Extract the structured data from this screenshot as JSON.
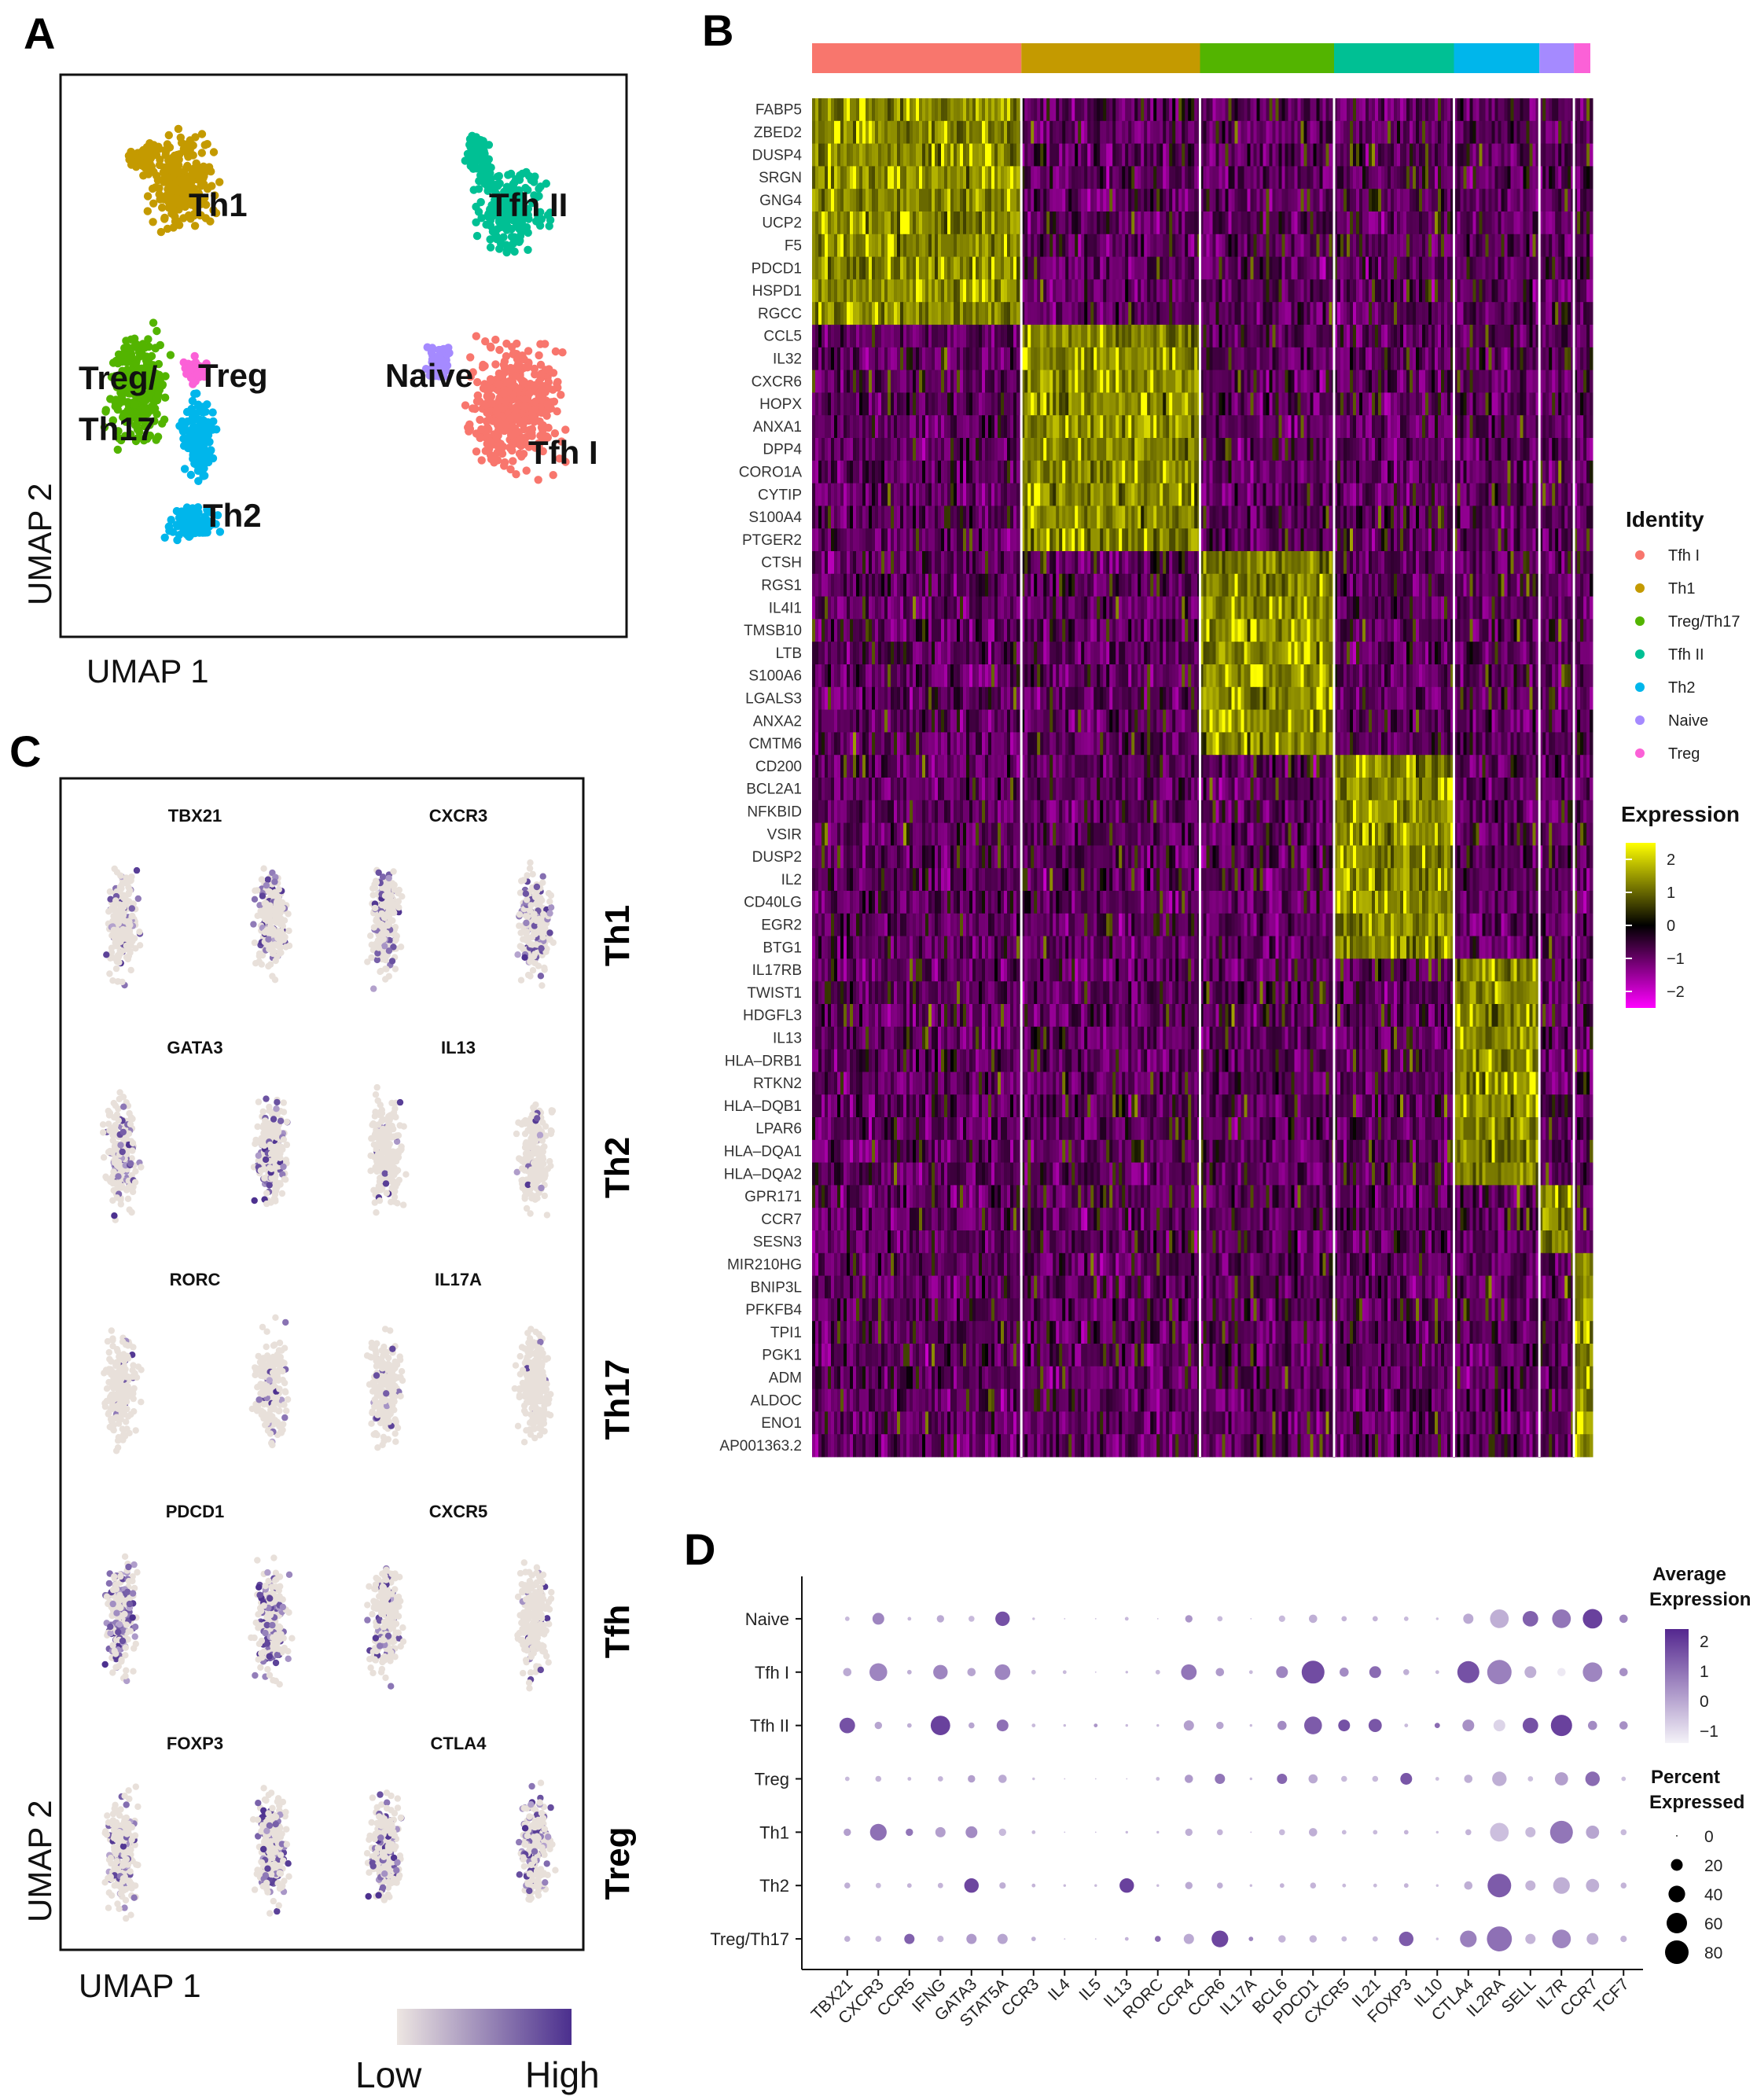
{
  "panels": {
    "A": "A",
    "B": "B",
    "C": "C",
    "D": "D"
  },
  "chart_data": [
    {
      "panel": "A",
      "type": "scatter",
      "xlabel": "UMAP 1",
      "ylabel": "UMAP 2",
      "cluster_labels": [
        {
          "text": "Th1"
        },
        {
          "text": "Tfh II"
        },
        {
          "text": "Treg/"
        },
        {
          "text": "Th17"
        },
        {
          "text": "Treg"
        },
        {
          "text": "Naive"
        },
        {
          "text": "Tfh I"
        },
        {
          "text": "Th2"
        }
      ]
    },
    {
      "panel": "B",
      "type": "heatmap",
      "genes": [
        "FABP5",
        "ZBED2",
        "DUSP4",
        "SRGN",
        "GNG4",
        "UCP2",
        "F5",
        "PDCD1",
        "HSPD1",
        "RGCC",
        "CCL5",
        "IL32",
        "CXCR6",
        "HOPX",
        "ANXA1",
        "DPP4",
        "CORO1A",
        "CYTIP",
        "S100A4",
        "PTGER2",
        "CTSH",
        "RGS1",
        "IL4I1",
        "TMSB10",
        "LTB",
        "S100A6",
        "LGALS3",
        "ANXA2",
        "CMTM6",
        "CD200",
        "BCL2A1",
        "NFKBID",
        "VSIR",
        "DUSP2",
        "IL2",
        "CD40LG",
        "EGR2",
        "BTG1",
        "IL17RB",
        "TWIST1",
        "HDGFL3",
        "IL13",
        "HLA–DRB1",
        "RTKN2",
        "HLA–DQB1",
        "LPAR6",
        "HLA–DQA1",
        "HLA–DQA2",
        "GPR171",
        "CCR7",
        "SESN3",
        "MIR210HG",
        "BNIP3L",
        "PFKFB4",
        "TPI1",
        "PGK1",
        "ADM",
        "ALDOC",
        "ENO1",
        "AP001363.2"
      ],
      "groups": [
        {
          "name": "Tfh I",
          "color": "#F8766D",
          "width_fraction": 0.267,
          "gene_block": [
            0,
            10
          ]
        },
        {
          "name": "Th1",
          "color": "#C49A00",
          "width_fraction": 0.228,
          "gene_block": [
            10,
            20
          ]
        },
        {
          "name": "Treg/Th17",
          "color": "#53B400",
          "width_fraction": 0.171,
          "gene_block": [
            20,
            29
          ]
        },
        {
          "name": "Tfh II",
          "color": "#00C094",
          "width_fraction": 0.153,
          "gene_block": [
            29,
            38
          ]
        },
        {
          "name": "Th2",
          "color": "#00B6EB",
          "width_fraction": 0.109,
          "gene_block": [
            38,
            48
          ]
        },
        {
          "name": "Naive",
          "color": "#A58AFF",
          "width_fraction": 0.044,
          "gene_block": [
            48,
            51
          ]
        },
        {
          "name": "Treg",
          "color": "#FB61D7",
          "width_fraction": 0.021,
          "gene_block": [
            51,
            60
          ]
        }
      ],
      "identity_legend": {
        "title": "Identity",
        "items": [
          {
            "name": "Tfh I",
            "color": "#F8766D"
          },
          {
            "name": "Th1",
            "color": "#C49A00"
          },
          {
            "name": "Treg/Th17",
            "color": "#53B400"
          },
          {
            "name": "Tfh II",
            "color": "#00C094"
          },
          {
            "name": "Th2",
            "color": "#00B6EB"
          },
          {
            "name": "Naive",
            "color": "#A58AFF"
          },
          {
            "name": "Treg",
            "color": "#FB61D7"
          }
        ]
      },
      "expression_legend": {
        "title": "Expression",
        "ticks": [
          "2",
          "1",
          "0",
          "−1",
          "−2"
        ],
        "range": [
          -2.5,
          2.5
        ]
      }
    },
    {
      "panel": "C",
      "type": "scatter",
      "xlabel": "UMAP 1",
      "ylabel": "UMAP 2",
      "rows": [
        {
          "label": "Th1",
          "genes": [
            "TBX21",
            "CXCR3"
          ],
          "expression": [
            0.25,
            0.45
          ]
        },
        {
          "label": "Th2",
          "genes": [
            "GATA3",
            "IL13"
          ],
          "expression": [
            0.4,
            0.12
          ]
        },
        {
          "label": "Th17",
          "genes": [
            "RORC",
            "IL17A"
          ],
          "expression": [
            0.12,
            0.05
          ]
        },
        {
          "label": "Tfh",
          "genes": [
            "PDCD1",
            "CXCR5"
          ],
          "expression": [
            0.55,
            0.2
          ]
        },
        {
          "label": "Treg",
          "genes": [
            "FOXP3",
            "CTLA4"
          ],
          "expression": [
            0.3,
            0.4
          ]
        }
      ],
      "color_legend": {
        "low": "Low",
        "high": "High"
      }
    },
    {
      "panel": "D",
      "type": "scatter",
      "subtype": "dot-plot",
      "rows": [
        "Naive",
        "Tfh I",
        "Tfh II",
        "Treg",
        "Th1",
        "Th2",
        "Treg/Th17"
      ],
      "columns": [
        "TBX21",
        "CXCR3",
        "CCR5",
        "IFNG",
        "GATA3",
        "STAT5A",
        "CCR3",
        "IL4",
        "IL5",
        "IL13",
        "RORC",
        "CCR4",
        "CCR6",
        "IL17A",
        "BCL6",
        "PDCD1",
        "CXCR5",
        "IL21",
        "FOXP3",
        "IL10",
        "CTLA4",
        "IL2RA",
        "SELL",
        "IL7R",
        "CCR7",
        "TCF7"
      ],
      "percent_expressed": [
        [
          3,
          20,
          2,
          8,
          5,
          30,
          1,
          0,
          0,
          2,
          0,
          8,
          4,
          0,
          6,
          10,
          4,
          4,
          3,
          1,
          15,
          50,
          35,
          50,
          55,
          10
        ],
        [
          10,
          45,
          3,
          30,
          10,
          35,
          3,
          2,
          0,
          1,
          3,
          35,
          10,
          2,
          20,
          75,
          12,
          20,
          5,
          2,
          70,
          85,
          20,
          10,
          55,
          10
        ],
        [
          35,
          8,
          3,
          55,
          5,
          20,
          2,
          1,
          2,
          1,
          1,
          15,
          8,
          1,
          12,
          45,
          20,
          25,
          2,
          4,
          20,
          20,
          35,
          65,
          12,
          10
        ],
        [
          3,
          5,
          2,
          4,
          8,
          10,
          1,
          0,
          0,
          0,
          2,
          10,
          15,
          1,
          15,
          12,
          5,
          5,
          20,
          2,
          10,
          30,
          4,
          25,
          30,
          3
        ],
        [
          8,
          40,
          8,
          15,
          20,
          8,
          2,
          0,
          0,
          1,
          1,
          8,
          5,
          0,
          5,
          10,
          3,
          3,
          3,
          1,
          5,
          50,
          15,
          75,
          25,
          5
        ],
        [
          5,
          4,
          3,
          4,
          30,
          6,
          2,
          1,
          1,
          30,
          1,
          8,
          5,
          1,
          3,
          5,
          2,
          2,
          3,
          1,
          10,
          80,
          15,
          40,
          25,
          5
        ],
        [
          5,
          5,
          15,
          6,
          15,
          15,
          3,
          0,
          0,
          2,
          5,
          15,
          40,
          3,
          8,
          8,
          4,
          4,
          30,
          1,
          40,
          90,
          15,
          50,
          20,
          6
        ]
      ],
      "average_expression": [
        [
          -0.5,
          0.5,
          -0.5,
          -0.2,
          -0.5,
          1.5,
          -0.6,
          -0.6,
          -0.6,
          -0.5,
          -0.6,
          0.2,
          -0.5,
          -0.6,
          -0.5,
          -0.3,
          -0.4,
          -0.4,
          -0.5,
          -0.6,
          -0.2,
          -0.3,
          1.2,
          0.8,
          1.8,
          0.5
        ],
        [
          -0.2,
          0.5,
          -0.3,
          0.5,
          -0.1,
          0.5,
          -0.5,
          -0.5,
          -0.6,
          -0.5,
          -0.5,
          0.8,
          0.1,
          -0.5,
          0.5,
          1.6,
          0.4,
          1.0,
          -0.3,
          -0.5,
          1.5,
          0.6,
          -0.3,
          -1.4,
          0.5,
          0.3
        ],
        [
          1.5,
          -0.1,
          -0.3,
          1.8,
          -0.1,
          0.9,
          -0.5,
          -0.5,
          0.2,
          -0.5,
          -0.5,
          0.0,
          -0.1,
          -0.5,
          0.4,
          1.3,
          1.5,
          1.4,
          -0.5,
          1.0,
          0.3,
          -1.0,
          1.5,
          1.8,
          0.4,
          0.3
        ],
        [
          -0.5,
          -0.4,
          -0.5,
          -0.4,
          0.0,
          -0.2,
          -0.6,
          -0.6,
          -0.6,
          -0.6,
          -0.5,
          0.1,
          0.8,
          -0.5,
          1.1,
          -0.2,
          -0.5,
          -0.5,
          1.4,
          -0.6,
          -0.3,
          -0.3,
          -0.6,
          0.0,
          1.0,
          -0.6
        ],
        [
          0.0,
          0.9,
          0.8,
          0.0,
          0.4,
          -0.5,
          -0.5,
          -0.6,
          -0.6,
          -0.5,
          -0.5,
          -0.3,
          -0.4,
          -0.5,
          -0.5,
          -0.3,
          -0.5,
          -0.5,
          -0.4,
          -0.6,
          -0.4,
          -0.6,
          -0.5,
          0.8,
          -0.1,
          -0.5
        ],
        [
          -0.3,
          -0.5,
          -0.4,
          -0.4,
          1.7,
          -0.3,
          -0.4,
          -0.5,
          -0.5,
          1.8,
          -0.5,
          -0.2,
          -0.3,
          -0.5,
          -0.4,
          -0.4,
          -0.5,
          -0.5,
          -0.4,
          -0.6,
          -0.3,
          1.3,
          -0.4,
          -0.3,
          -0.3,
          -0.4
        ],
        [
          -0.3,
          -0.4,
          1.2,
          -0.4,
          0.1,
          -0.1,
          -0.3,
          -0.5,
          -0.5,
          -0.4,
          1.0,
          -0.2,
          1.7,
          0.5,
          -0.4,
          -0.4,
          -0.5,
          -0.5,
          1.3,
          -0.6,
          0.6,
          0.9,
          -0.4,
          0.5,
          -0.3,
          -0.4
        ]
      ],
      "legend_avg": {
        "title1": "Average",
        "title2": "Expression",
        "ticks": [
          "2",
          "1",
          "0",
          "−1"
        ]
      },
      "legend_pct": {
        "title1": "Percent",
        "title2": "Expressed",
        "ticks": [
          "0",
          "20",
          "40",
          "60",
          "80"
        ]
      }
    }
  ]
}
